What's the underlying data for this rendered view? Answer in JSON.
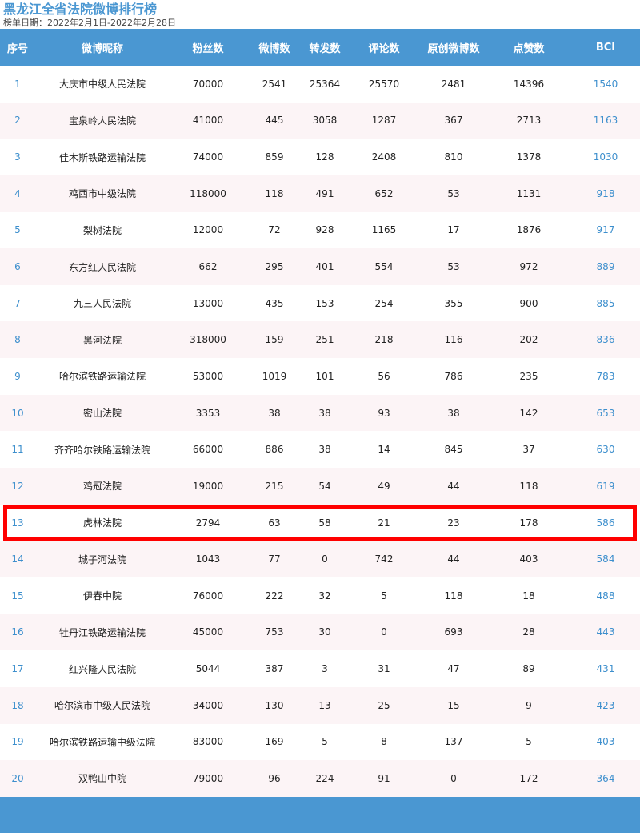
{
  "title": "黑龙江全省法院微博排行榜",
  "date": "榜单日期：2022年2月1日-2022年2月28日",
  "headers": [
    "序号",
    "微博昵称",
    "粉丝数",
    "微博数",
    "转发数",
    "评论数",
    "原创微博数",
    "点赞数",
    "BCI"
  ],
  "rows": [
    [
      "1",
      "大庆市中级人民法院",
      "70000",
      "2541",
      "25364",
      "25570",
      "2481",
      "14396",
      "1540"
    ],
    [
      "2",
      "宝泉岭人民法院",
      "41000",
      "445",
      "3058",
      "1287",
      "367",
      "2713",
      "1163"
    ],
    [
      "3",
      "佳木斯铁路运输法院",
      "74000",
      "859",
      "128",
      "2408",
      "810",
      "1378",
      "1030"
    ],
    [
      "4",
      "鸡西市中级法院",
      "118000",
      "118",
      "491",
      "652",
      "53",
      "1131",
      "918"
    ],
    [
      "5",
      "梨树法院",
      "12000",
      "72",
      "928",
      "1165",
      "17",
      "1876",
      "917"
    ],
    [
      "6",
      "东方红人民法院",
      "662",
      "295",
      "401",
      "554",
      "53",
      "972",
      "889"
    ],
    [
      "7",
      "九三人民法院",
      "13000",
      "435",
      "153",
      "254",
      "355",
      "900",
      "885"
    ],
    [
      "8",
      "黑河法院",
      "318000",
      "159",
      "251",
      "218",
      "116",
      "202",
      "836"
    ],
    [
      "9",
      "哈尔滨铁路运输法院",
      "53000",
      "1019",
      "101",
      "56",
      "786",
      "235",
      "783"
    ],
    [
      "10",
      "密山法院",
      "3353",
      "38",
      "38",
      "93",
      "38",
      "142",
      "653"
    ],
    [
      "11",
      "齐齐哈尔铁路运输法院",
      "66000",
      "886",
      "38",
      "14",
      "845",
      "37",
      "630"
    ],
    [
      "12",
      "鸡冠法院",
      "19000",
      "215",
      "54",
      "49",
      "44",
      "118",
      "619"
    ],
    [
      "13",
      "虎林法院",
      "2794",
      "63",
      "58",
      "21",
      "23",
      "178",
      "586"
    ],
    [
      "14",
      "城子河法院",
      "1043",
      "77",
      "0",
      "742",
      "44",
      "403",
      "584"
    ],
    [
      "15",
      "伊春中院",
      "76000",
      "222",
      "32",
      "5",
      "118",
      "18",
      "488"
    ],
    [
      "16",
      "牡丹江铁路运输法院",
      "45000",
      "753",
      "30",
      "0",
      "693",
      "28",
      "443"
    ],
    [
      "17",
      "红兴隆人民法院",
      "5044",
      "387",
      "3",
      "31",
      "47",
      "89",
      "431"
    ],
    [
      "18",
      "哈尔滨市中级人民法院",
      "34000",
      "130",
      "13",
      "25",
      "15",
      "9",
      "423"
    ],
    [
      "19",
      "哈尔滨铁路运输中级法院",
      "83000",
      "169",
      "5",
      "8",
      "137",
      "5",
      "403"
    ],
    [
      "20",
      "双鸭山中院",
      "79000",
      "96",
      "224",
      "91",
      "0",
      "172",
      "364"
    ]
  ],
  "highlighted_rank": "13",
  "colors": {
    "accent": "#4a97d2",
    "highlight": "#ff0000",
    "alt_row": "#fcf4f6"
  }
}
